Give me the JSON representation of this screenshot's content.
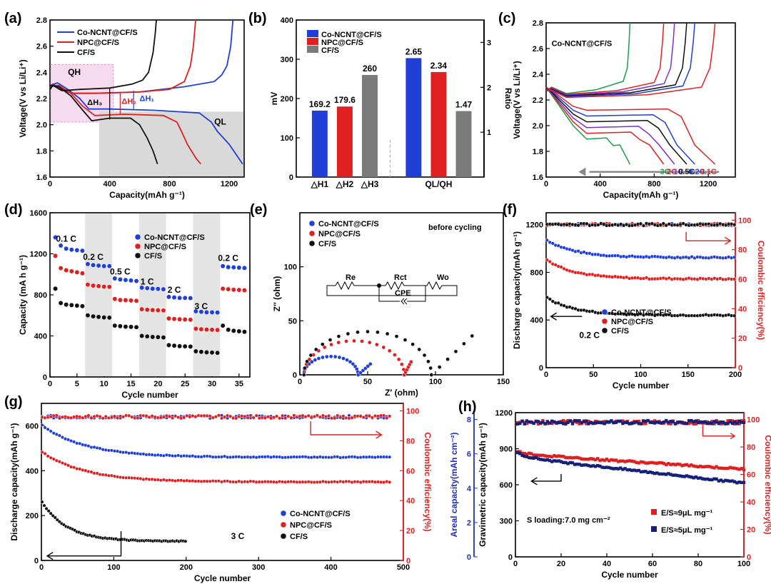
{
  "colors": {
    "blue": "#1f3fd6",
    "red": "#e02020",
    "black": "#111111",
    "gray": "#7a7a7a",
    "violet": "#7a2fd0",
    "green": "#18a04a",
    "lightgray": "#d9d9d9",
    "pink": "#f6dbee"
  },
  "chart_data": [
    {
      "id": "a",
      "panel_label": "(a)",
      "type": "line",
      "xlabel": "Capacity(mAh g⁻¹)",
      "ylabel": "Voltage(V vs Li/Li⁺)",
      "xlim": [
        0,
        1300
      ],
      "ylim": [
        1.6,
        2.8
      ],
      "xticks": [
        0,
        400,
        800,
        1200
      ],
      "yticks": [
        1.6,
        1.8,
        2.0,
        2.2,
        2.4,
        2.6,
        2.8
      ],
      "yticklabels": [
        "1.6",
        "1.8",
        "2.0",
        "2.2",
        "2.4",
        "2.6",
        "2.8"
      ],
      "legend": [
        "Co-NCNT@CF/S",
        "NPC@CF/S",
        "CF/S"
      ],
      "annotations": [
        "QH",
        "QL",
        "ΔH₁",
        "ΔH₂",
        "ΔH₃"
      ],
      "series": [
        {
          "name": "Co-NCNT@CF/S",
          "color": "blue",
          "points": [
            [
              0,
              2.27
            ],
            [
              20,
              2.31
            ],
            [
              60,
              2.28
            ],
            [
              150,
              2.24
            ],
            [
              300,
              2.24
            ],
            [
              600,
              2.25
            ],
            [
              900,
              2.29
            ],
            [
              1100,
              2.33
            ],
            [
              1150,
              2.38
            ],
            [
              1185,
              2.45
            ],
            [
              1210,
              2.6
            ],
            [
              1225,
              2.8
            ]
          ]
        },
        {
          "name": "Co-NCNT@CF/S dis",
          "color": "blue",
          "points": [
            [
              0,
              2.3
            ],
            [
              50,
              2.32
            ],
            [
              120,
              2.27
            ],
            [
              200,
              2.2
            ],
            [
              260,
              2.12
            ],
            [
              400,
              2.12
            ],
            [
              700,
              2.11
            ],
            [
              1000,
              2.09
            ],
            [
              1080,
              2.02
            ],
            [
              1120,
              1.95
            ],
            [
              1200,
              1.85
            ],
            [
              1260,
              1.75
            ],
            [
              1290,
              1.7
            ]
          ]
        },
        {
          "name": "NPC@CF/S",
          "color": "red",
          "points": [
            [
              0,
              2.27
            ],
            [
              20,
              2.3
            ],
            [
              70,
              2.27
            ],
            [
              150,
              2.24
            ],
            [
              300,
              2.24
            ],
            [
              600,
              2.25
            ],
            [
              800,
              2.27
            ],
            [
              900,
              2.33
            ],
            [
              940,
              2.45
            ],
            [
              960,
              2.6
            ],
            [
              975,
              2.8
            ]
          ]
        },
        {
          "name": "NPC@CF/S dis",
          "color": "red",
          "points": [
            [
              0,
              2.3
            ],
            [
              60,
              2.3
            ],
            [
              140,
              2.24
            ],
            [
              220,
              2.14
            ],
            [
              300,
              2.07
            ],
            [
              500,
              2.08
            ],
            [
              760,
              2.07
            ],
            [
              850,
              2.02
            ],
            [
              880,
              1.95
            ],
            [
              920,
              1.85
            ],
            [
              980,
              1.74
            ],
            [
              1010,
              1.7
            ]
          ]
        },
        {
          "name": "CF/S",
          "color": "black",
          "points": [
            [
              0,
              2.27
            ],
            [
              20,
              2.3
            ],
            [
              80,
              2.26
            ],
            [
              200,
              2.27
            ],
            [
              400,
              2.28
            ],
            [
              550,
              2.31
            ],
            [
              620,
              2.34
            ],
            [
              660,
              2.4
            ],
            [
              690,
              2.55
            ],
            [
              705,
              2.7
            ],
            [
              712,
              2.8
            ]
          ]
        },
        {
          "name": "CF/S dis",
          "color": "black",
          "points": [
            [
              0,
              2.3
            ],
            [
              60,
              2.29
            ],
            [
              140,
              2.22
            ],
            [
              220,
              2.11
            ],
            [
              280,
              2.03
            ],
            [
              400,
              2.05
            ],
            [
              540,
              2.05
            ],
            [
              600,
              2.0
            ],
            [
              650,
              1.9
            ],
            [
              690,
              1.8
            ],
            [
              720,
              1.7
            ]
          ]
        }
      ]
    },
    {
      "id": "b",
      "panel_label": "(b)",
      "type": "bar",
      "ylabel": "mV",
      "ylabel_right": "Ratio",
      "ylim": [
        0,
        400
      ],
      "ylim_right": [
        0,
        3.5
      ],
      "yticks": [
        0,
        100,
        200,
        300,
        400
      ],
      "yticks_right": [
        1,
        2,
        3
      ],
      "categories": [
        "△H1",
        "△H2",
        "△H3",
        "QL/QH"
      ],
      "legend": [
        "Co-NCNT@CF/S",
        "NPC@CF/S",
        "CF/S"
      ],
      "bars_mv": [
        {
          "category": "△H1",
          "value": 169.2,
          "label": "169.2",
          "color": "blue"
        },
        {
          "category": "△H2",
          "value": 179.6,
          "label": "179.6",
          "color": "red"
        },
        {
          "category": "△H3",
          "value": 260,
          "label": "260",
          "color": "gray"
        }
      ],
      "bars_ratio": [
        {
          "value": 2.65,
          "label": "2.65",
          "color": "blue"
        },
        {
          "value": 2.34,
          "label": "2.34",
          "color": "red"
        },
        {
          "value": 1.47,
          "label": "1.47",
          "color": "gray"
        }
      ]
    },
    {
      "id": "c",
      "panel_label": "(c)",
      "type": "line",
      "title": "Co-NCNT@CF/S",
      "xlabel": "Capacity(mAh g⁻¹)",
      "ylabel": "Voltage(V vs Li/Li⁺)",
      "xlim": [
        0,
        1400
      ],
      "ylim": [
        1.6,
        2.8
      ],
      "xticks": [
        0,
        400,
        800,
        1200
      ],
      "yticks": [
        1.6,
        1.8,
        2.0,
        2.2,
        2.4,
        2.6,
        2.8
      ],
      "yticklabels": [
        "1.6",
        "1.8",
        "2.0",
        "2.2",
        "2.4",
        "2.6",
        "2.8"
      ],
      "rates": [
        {
          "label": "3C",
          "color": "green",
          "cap": 620
        },
        {
          "label": "2C",
          "color": "red",
          "cap": 870
        },
        {
          "label": "1C",
          "color": "violet",
          "cap": 950
        },
        {
          "label": "0.5C",
          "color": "black",
          "cap": 1040
        },
        {
          "label": "0.2C",
          "color": "blue",
          "cap": 1100
        },
        {
          "label": "0.1C",
          "color": "red",
          "cap": 1250
        }
      ]
    },
    {
      "id": "d",
      "panel_label": "(d)",
      "type": "scatter",
      "xlabel": "Cycle number",
      "ylabel": "Capacity (mA h g⁻¹)",
      "xlim": [
        0,
        37
      ],
      "ylim": [
        0,
        1600
      ],
      "xticks": [
        0,
        5,
        10,
        15,
        20,
        25,
        30,
        35
      ],
      "yticks": [
        0,
        400,
        800,
        1200,
        1600
      ],
      "legend": [
        "Co-NCNT@CF/S",
        "NPC@CF/S",
        "CF/S"
      ],
      "rate_labels": [
        "0.1 C",
        "0.2 C",
        "0.5 C",
        "1 C",
        "2 C",
        "3 C",
        "0.2 C"
      ],
      "series": [
        {
          "name": "Co-NCNT@CF/S",
          "color": "blue",
          "values": [
            1360,
            1280,
            1250,
            1240,
            1235,
            1230,
            1100,
            1090,
            1085,
            1080,
            1080,
            960,
            950,
            945,
            940,
            935,
            870,
            865,
            860,
            858,
            855,
            780,
            775,
            770,
            770,
            768,
            640,
            635,
            630,
            630,
            628,
            1080,
            1070,
            1068,
            1065,
            1062
          ]
        },
        {
          "name": "NPC@CF/S",
          "color": "red",
          "values": [
            1180,
            1060,
            1040,
            1030,
            1020,
            1010,
            900,
            890,
            885,
            880,
            878,
            760,
            750,
            748,
            745,
            742,
            660,
            655,
            652,
            650,
            648,
            570,
            565,
            562,
            560,
            558,
            470,
            465,
            462,
            460,
            458,
            860,
            855,
            850,
            848,
            845
          ]
        },
        {
          "name": "CF/S",
          "color": "black",
          "values": [
            860,
            720,
            705,
            700,
            695,
            690,
            600,
            590,
            585,
            580,
            578,
            500,
            495,
            490,
            488,
            485,
            400,
            395,
            390,
            388,
            385,
            310,
            305,
            300,
            298,
            296,
            250,
            245,
            240,
            238,
            235,
            500,
            460,
            450,
            445,
            440
          ]
        }
      ]
    },
    {
      "id": "e",
      "panel_label": "(e)",
      "type": "scatter",
      "title": "before cycling",
      "xlabel": "Z′ (ohm)",
      "ylabel": "Z″ (ohm)",
      "xlim": [
        0,
        150
      ],
      "ylim": [
        0,
        150
      ],
      "xticks": [
        0,
        50,
        100,
        150
      ],
      "yticks": [
        0,
        50,
        100
      ],
      "legend": [
        "Co-NCNT@CF/S",
        "NPC@CF/S",
        "CF/S"
      ],
      "circuit": [
        "Re",
        "Rct",
        "Wo",
        "CPE"
      ],
      "series": [
        {
          "name": "Co-NCNT@CF/S",
          "color": "blue",
          "rs": 3,
          "rct": 40,
          "tail_end": [
            52,
            10
          ]
        },
        {
          "name": "NPC@CF/S",
          "color": "red",
          "rs": 3,
          "rct": 74,
          "tail_end": [
            82,
            12
          ]
        },
        {
          "name": "CF/S",
          "color": "black",
          "rs": 3,
          "rct": 94,
          "tail_end": [
            127,
            36
          ]
        }
      ]
    },
    {
      "id": "f",
      "panel_label": "(f)",
      "type": "scatter",
      "xlabel": "Cycle number",
      "ylabel": "Discharge capacity(mAh g⁻¹)",
      "ylabel_right": "Coulombic efficiency(%)",
      "xlim": [
        0,
        200
      ],
      "ylim": [
        0,
        1300
      ],
      "ylim_right": [
        0,
        105
      ],
      "xticks": [
        0,
        50,
        100,
        150,
        200
      ],
      "yticks": [
        0,
        400,
        800,
        1200
      ],
      "yticks_right": [
        0,
        20,
        40,
        60,
        80,
        100
      ],
      "rate": "0.2 C",
      "legend": [
        "Co-NCNT@CF/S",
        "NPC@CF/S",
        "CF/S"
      ],
      "series": [
        {
          "name": "Co-NCNT@CF/S",
          "color": "blue",
          "start": 1075,
          "end": 925,
          "ce": 97
        },
        {
          "name": "NPC@CF/S",
          "color": "red",
          "start": 910,
          "end": 745,
          "ce": 97
        },
        {
          "name": "CF/S",
          "color": "black",
          "start": 590,
          "end": 440,
          "ce": 97
        }
      ]
    },
    {
      "id": "g",
      "panel_label": "(g)",
      "type": "scatter",
      "xlabel": "Cycle number",
      "ylabel": "Discharge capacity(mAh g⁻¹)",
      "ylabel_right": "Coulombic efficiency(%)",
      "xlim": [
        0,
        500
      ],
      "ylim": [
        0,
        700
      ],
      "ylim_right": [
        0,
        105
      ],
      "xticks": [
        0,
        100,
        200,
        300,
        400,
        500
      ],
      "yticks": [
        0,
        200,
        400,
        600
      ],
      "yticks_right": [
        0,
        20,
        40,
        60,
        80,
        100
      ],
      "rate": "3 C",
      "legend": [
        "Co-NCNT@CF/S",
        "NPC@CF/S",
        "CF/S"
      ],
      "series": [
        {
          "name": "Co-NCNT@CF/S",
          "color": "blue",
          "start": 605,
          "end": 460,
          "cycles": 483,
          "ce": 96
        },
        {
          "name": "NPC@CF/S",
          "color": "red",
          "start": 485,
          "end": 350,
          "cycles": 483,
          "ce": 96
        },
        {
          "name": "CF/S",
          "color": "black",
          "start": 265,
          "end": 85,
          "cycles": 200
        }
      ]
    },
    {
      "id": "h",
      "panel_label": "(h)",
      "type": "scatter",
      "xlabel": "Cycle number",
      "ylabel": "Gravimetric capacity(mAh g⁻¹)",
      "ylabel_left2": "Areal capacity(mAh cm⁻²)",
      "ylabel_right": "Coulombic efficiency(%)",
      "xlim": [
        0,
        100
      ],
      "ylim": [
        0,
        1200
      ],
      "ylim_areal": [
        0,
        8.4
      ],
      "ylim_right": [
        0,
        105
      ],
      "xticks": [
        0,
        20,
        40,
        60,
        80,
        100
      ],
      "yticks": [
        0,
        300,
        600,
        900,
        1200
      ],
      "yticks_areal": [
        0,
        2,
        4,
        6,
        8
      ],
      "yticks_right": [
        0,
        20,
        40,
        60,
        80,
        100
      ],
      "loading": "S loading:7.0 mg cm⁻²",
      "legend": [
        "E/S≈9μL mg⁻¹",
        "E/S≈5μL mg⁻¹"
      ],
      "series": [
        {
          "name": "E/S≈9μL mg⁻¹",
          "color": "red",
          "start": 880,
          "end": 730
        },
        {
          "name": "E/S≈5μL mg⁻¹",
          "color": "navy",
          "start": 870,
          "end": 615
        }
      ]
    }
  ]
}
